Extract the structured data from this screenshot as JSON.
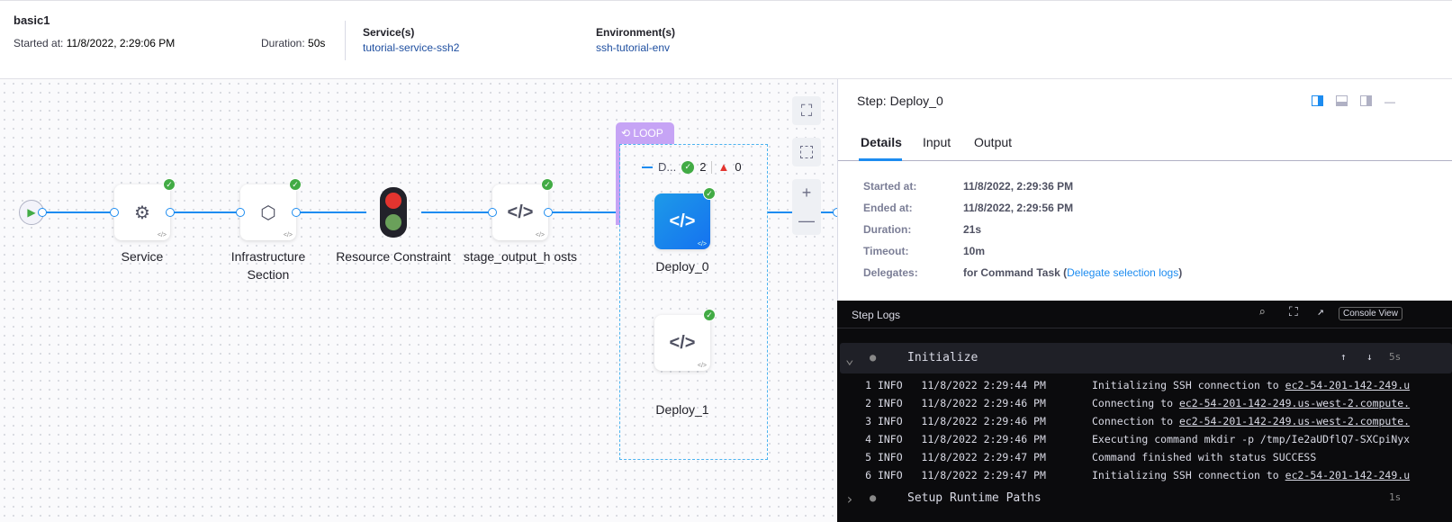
{
  "header": {
    "title": "basic1",
    "started_label": "Started at:",
    "started_value": "11/8/2022, 2:29:06 PM",
    "duration_label": "Duration:",
    "duration_value": "50s",
    "services_label": "Service(s)",
    "services_value": "tutorial-service-ssh2",
    "env_label": "Environment(s)",
    "env_value": "ssh-tutorial-env"
  },
  "pipeline": {
    "nodes": [
      {
        "label": "Service",
        "icon": "gear-icon"
      },
      {
        "label": "Infrastructure Section",
        "icon": "hexagons-icon"
      },
      {
        "label": "Resource Constraint",
        "icon": "traffic-light-icon"
      },
      {
        "label": "stage_output_h osts",
        "icon": "code-icon"
      }
    ],
    "loop": {
      "tag": "LOOP",
      "group_label": "D...",
      "success_count": "2",
      "failed_count": "0",
      "steps": [
        {
          "label": "Deploy_0"
        },
        {
          "label": "Deploy_1"
        }
      ]
    }
  },
  "panel": {
    "title": "Step: Deploy_0",
    "tabs": [
      "Details",
      "Input",
      "Output"
    ],
    "active_tab": "Details",
    "details": [
      {
        "k": "Started at:",
        "v": "11/8/2022, 2:29:36 PM"
      },
      {
        "k": "Ended at:",
        "v": "11/8/2022, 2:29:56 PM"
      },
      {
        "k": "Duration:",
        "v": "21s"
      },
      {
        "k": "Timeout:",
        "v": "10m"
      }
    ],
    "delegates_label": "Delegates:",
    "delegates_text": "for Command Task (",
    "delegates_link": "Delegate selection logs",
    "delegates_close": ")"
  },
  "logs": {
    "title": "Step Logs",
    "console_view": "Console View",
    "section1": {
      "name": "Initialize",
      "duration": "5s"
    },
    "lines": [
      {
        "n": "1",
        "lvl": "INFO",
        "ts": "11/8/2022 2:29:44 PM",
        "pre": "Initializing SSH connection to ",
        "link": "ec2-54-201-142-249.u"
      },
      {
        "n": "2",
        "lvl": "INFO",
        "ts": "11/8/2022 2:29:46 PM",
        "pre": "Connecting to ",
        "link": "ec2-54-201-142-249.us-west-2.compute."
      },
      {
        "n": "3",
        "lvl": "INFO",
        "ts": "11/8/2022 2:29:46 PM",
        "pre": "Connection to ",
        "link": "ec2-54-201-142-249.us-west-2.compute."
      },
      {
        "n": "4",
        "lvl": "INFO",
        "ts": "11/8/2022 2:29:46 PM",
        "pre": "Executing command mkdir -p /tmp/Ie2aUDflQ7-SXCpiNyx",
        "link": ""
      },
      {
        "n": "5",
        "lvl": "INFO",
        "ts": "11/8/2022 2:29:47 PM",
        "pre": "Command finished with status SUCCESS",
        "link": ""
      },
      {
        "n": "6",
        "lvl": "INFO",
        "ts": "11/8/2022 2:29:47 PM",
        "pre": "Initializing SSH connection to ",
        "link": "ec2-54-201-142-249.u"
      }
    ],
    "section2": {
      "name": "Setup Runtime Paths",
      "duration": "1s"
    }
  },
  "colors": {
    "accent": "#1d8cf0",
    "success": "#42ab45",
    "loop": "#c6a4f5",
    "warning": "#e3342f"
  }
}
